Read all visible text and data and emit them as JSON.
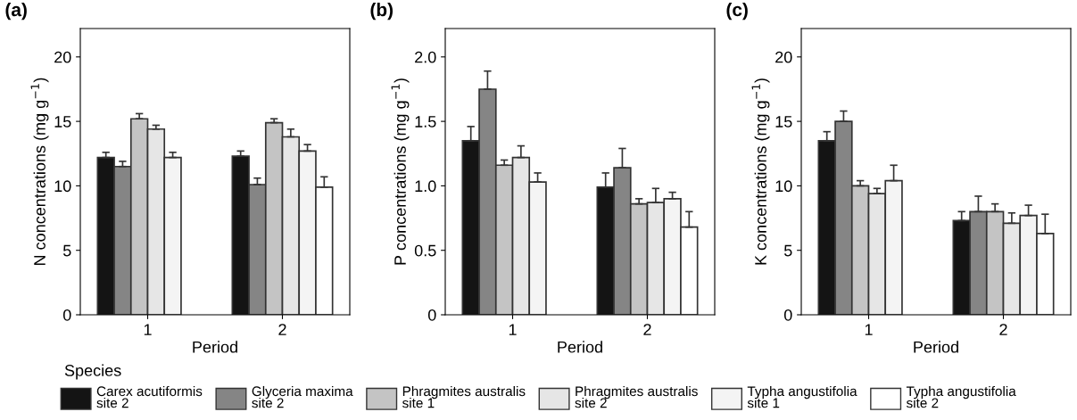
{
  "chart_data": [
    {
      "type": "bar",
      "title": "(a)",
      "xlabel": "Period",
      "ylabel": "N concentrations (mg g$^{−1}$)",
      "categories": [
        "1",
        "2"
      ],
      "ylim": [
        0,
        22.2
      ],
      "yticks": [
        0,
        5,
        10,
        15,
        20
      ],
      "grid": false,
      "legend": "bottom",
      "legend_title": "Species",
      "series": [
        {
          "name": "Carex acutiformis\nsite 2",
          "color": "#141414",
          "values": [
            12.2,
            12.3
          ],
          "errors": [
            [
              12.2,
              12.6
            ],
            [
              12.3,
              12.7
            ]
          ]
        },
        {
          "name": "Glyceria maxima\nsite 2",
          "color": "#858585",
          "values": [
            11.5,
            10.1
          ],
          "errors": [
            [
              11.5,
              11.9
            ],
            [
              10.1,
              10.6
            ]
          ]
        },
        {
          "name": "Phragmites australis\nsite 1",
          "color": "#c4c4c4",
          "values": [
            15.2,
            14.9
          ],
          "errors": [
            [
              15.2,
              15.6
            ],
            [
              14.9,
              15.2
            ]
          ]
        },
        {
          "name": "Phragmites australis\nsite 2",
          "color": "#e6e6e6",
          "values": [
            14.4,
            13.8
          ],
          "errors": [
            [
              14.4,
              14.7
            ],
            [
              13.8,
              14.4
            ]
          ]
        },
        {
          "name": "Typha angustifolia\nsite 1",
          "color": "#f4f4f4",
          "values": [
            12.2,
            12.7
          ],
          "errors": [
            [
              12.2,
              12.6
            ],
            [
              12.7,
              13.2
            ]
          ]
        },
        {
          "name": "Typha angustifolia\nsite 2",
          "color": "#ffffff",
          "values": [
            null,
            9.9
          ],
          "errors": [
            null,
            [
              9.9,
              10.7
            ]
          ]
        }
      ]
    },
    {
      "type": "bar",
      "title": "(b)",
      "xlabel": "Period",
      "ylabel": "P concentrations (mg g$^{−1}$)",
      "categories": [
        "1",
        "2"
      ],
      "ylim": [
        0,
        2.22
      ],
      "yticks": [
        0,
        0.5,
        {
          "value": 1,
          "label": "1.0"
        },
        1.5,
        {
          "value": 2,
          "label": "2.0"
        }
      ],
      "grid": false,
      "series": [
        {
          "color": "#141414",
          "values": [
            1.35,
            0.99
          ],
          "errors": [
            [
              1.35,
              1.46
            ],
            [
              0.99,
              1.1
            ]
          ]
        },
        {
          "color": "#858585",
          "values": [
            1.75,
            1.14
          ],
          "errors": [
            [
              1.75,
              1.89
            ],
            [
              1.14,
              1.29
            ]
          ]
        },
        {
          "color": "#c4c4c4",
          "values": [
            1.16,
            0.86
          ],
          "errors": [
            [
              1.16,
              1.2
            ],
            [
              0.86,
              0.9
            ]
          ]
        },
        {
          "color": "#e6e6e6",
          "values": [
            1.22,
            0.87
          ],
          "errors": [
            [
              1.22,
              1.31
            ],
            [
              0.87,
              0.98
            ]
          ]
        },
        {
          "color": "#f4f4f4",
          "values": [
            1.03,
            0.9
          ],
          "errors": [
            [
              1.03,
              1.1
            ],
            [
              0.9,
              0.95
            ]
          ]
        },
        {
          "color": "#ffffff",
          "values": [
            null,
            0.68
          ],
          "errors": [
            null,
            [
              0.68,
              0.8
            ]
          ]
        }
      ]
    },
    {
      "type": "bar",
      "title": "(c)",
      "xlabel": "Period",
      "ylabel": "K concentrations (mg g$^{−1}$)",
      "categories": [
        "1",
        "2"
      ],
      "ylim": [
        0,
        22.2
      ],
      "yticks": [
        0,
        5,
        10,
        15,
        20
      ],
      "grid": false,
      "series": [
        {
          "color": "#141414",
          "values": [
            13.5,
            7.3
          ],
          "errors": [
            [
              13.5,
              14.2
            ],
            [
              7.3,
              8.0
            ]
          ]
        },
        {
          "color": "#858585",
          "values": [
            15.0,
            8.0
          ],
          "errors": [
            [
              15.0,
              15.8
            ],
            [
              8.0,
              9.2
            ]
          ]
        },
        {
          "color": "#c4c4c4",
          "values": [
            10.0,
            8.0
          ],
          "errors": [
            [
              10.0,
              10.4
            ],
            [
              8.0,
              8.6
            ]
          ]
        },
        {
          "color": "#e6e6e6",
          "values": [
            9.4,
            7.1
          ],
          "errors": [
            [
              9.4,
              9.8
            ],
            [
              7.1,
              7.9
            ]
          ]
        },
        {
          "color": "#f4f4f4",
          "values": [
            10.4,
            7.7
          ],
          "errors": [
            [
              10.4,
              11.6
            ],
            [
              7.7,
              8.5
            ]
          ]
        },
        {
          "color": "#ffffff",
          "values": [
            null,
            6.3
          ],
          "errors": [
            null,
            [
              6.3,
              7.8
            ]
          ]
        }
      ]
    }
  ]
}
